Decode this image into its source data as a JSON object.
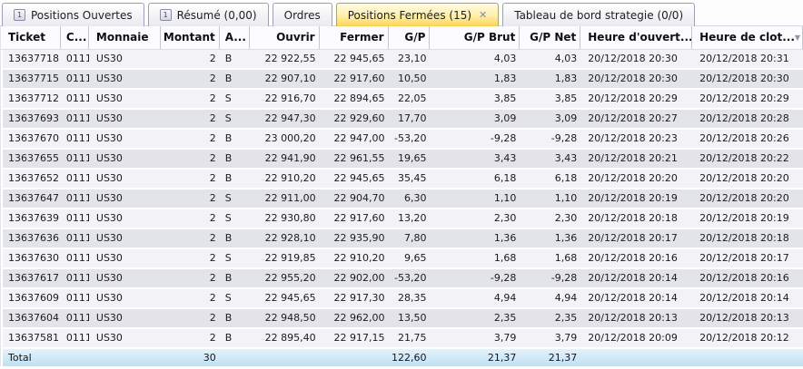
{
  "tabs": [
    {
      "label": "Positions Ouvertes",
      "badge": "1",
      "active": false,
      "closable": false
    },
    {
      "label": "Résumé (0,00)",
      "badge": "1",
      "active": false,
      "closable": false
    },
    {
      "label": "Ordres",
      "active": false,
      "closable": false
    },
    {
      "label": "Positions Fermées (15)",
      "active": true,
      "closable": true
    },
    {
      "label": "Tableau de bord strategie (0/0)",
      "active": false,
      "closable": false
    }
  ],
  "icons": {
    "close_glyph": "✕",
    "header_menu_glyph": "▼"
  },
  "colors": {
    "active_tab_yellow": "#fdd354",
    "row_stripe_light": "#f2f2f7",
    "row_stripe_dark": "#e3e3ea",
    "total_row_blue": "#bfe0f4"
  },
  "table": {
    "columns": [
      {
        "key": "ticket",
        "label": "Ticket"
      },
      {
        "key": "code",
        "label": "C..."
      },
      {
        "key": "monnaie",
        "label": "Monnaie"
      },
      {
        "key": "montant",
        "label": "Montant"
      },
      {
        "key": "achat",
        "label": "A..."
      },
      {
        "key": "ouvrir",
        "label": "Ouvrir"
      },
      {
        "key": "fermer",
        "label": "Fermer"
      },
      {
        "key": "gp",
        "label": "G/P"
      },
      {
        "key": "gp_brut",
        "label": "G/P Brut"
      },
      {
        "key": "gp_net",
        "label": "G/P Net"
      },
      {
        "key": "h_ouv",
        "label": "Heure d'ouvert..."
      },
      {
        "key": "h_clot",
        "label": "Heure de clot..."
      }
    ],
    "rows": [
      {
        "ticket": "13637718",
        "code": "0111",
        "monnaie": "US30",
        "montant": "2",
        "achat": "B",
        "ouvrir": "22 922,55",
        "fermer": "22 945,65",
        "gp": "23,10",
        "gp_brut": "4,03",
        "gp_net": "4,03",
        "h_ouv": "20/12/2018 20:30",
        "h_clot": "20/12/2018 20:31"
      },
      {
        "ticket": "13637715",
        "code": "0111",
        "monnaie": "US30",
        "montant": "2",
        "achat": "B",
        "ouvrir": "22 907,10",
        "fermer": "22 917,60",
        "gp": "10,50",
        "gp_brut": "1,83",
        "gp_net": "1,83",
        "h_ouv": "20/12/2018 20:30",
        "h_clot": "20/12/2018 20:30"
      },
      {
        "ticket": "13637712",
        "code": "0111",
        "monnaie": "US30",
        "montant": "2",
        "achat": "S",
        "ouvrir": "22 916,70",
        "fermer": "22 894,65",
        "gp": "22,05",
        "gp_brut": "3,85",
        "gp_net": "3,85",
        "h_ouv": "20/12/2018 20:29",
        "h_clot": "20/12/2018 20:29"
      },
      {
        "ticket": "13637693",
        "code": "0111",
        "monnaie": "US30",
        "montant": "2",
        "achat": "S",
        "ouvrir": "22 947,30",
        "fermer": "22 929,60",
        "gp": "17,70",
        "gp_brut": "3,09",
        "gp_net": "3,09",
        "h_ouv": "20/12/2018 20:27",
        "h_clot": "20/12/2018 20:28"
      },
      {
        "ticket": "13637670",
        "code": "0111",
        "monnaie": "US30",
        "montant": "2",
        "achat": "B",
        "ouvrir": "23 000,20",
        "fermer": "22 947,00",
        "gp": "-53,20",
        "gp_brut": "-9,28",
        "gp_net": "-9,28",
        "h_ouv": "20/12/2018 20:23",
        "h_clot": "20/12/2018 20:26"
      },
      {
        "ticket": "13637655",
        "code": "0111",
        "monnaie": "US30",
        "montant": "2",
        "achat": "B",
        "ouvrir": "22 941,90",
        "fermer": "22 961,55",
        "gp": "19,65",
        "gp_brut": "3,43",
        "gp_net": "3,43",
        "h_ouv": "20/12/2018 20:21",
        "h_clot": "20/12/2018 20:22"
      },
      {
        "ticket": "13637652",
        "code": "0111",
        "monnaie": "US30",
        "montant": "2",
        "achat": "B",
        "ouvrir": "22 910,20",
        "fermer": "22 945,65",
        "gp": "35,45",
        "gp_brut": "6,18",
        "gp_net": "6,18",
        "h_ouv": "20/12/2018 20:20",
        "h_clot": "20/12/2018 20:20"
      },
      {
        "ticket": "13637647",
        "code": "0111",
        "monnaie": "US30",
        "montant": "2",
        "achat": "S",
        "ouvrir": "22 911,00",
        "fermer": "22 904,70",
        "gp": "6,30",
        "gp_brut": "1,10",
        "gp_net": "1,10",
        "h_ouv": "20/12/2018 20:19",
        "h_clot": "20/12/2018 20:20"
      },
      {
        "ticket": "13637639",
        "code": "0111",
        "monnaie": "US30",
        "montant": "2",
        "achat": "S",
        "ouvrir": "22 930,80",
        "fermer": "22 917,60",
        "gp": "13,20",
        "gp_brut": "2,30",
        "gp_net": "2,30",
        "h_ouv": "20/12/2018 20:18",
        "h_clot": "20/12/2018 20:19"
      },
      {
        "ticket": "13637636",
        "code": "0111",
        "monnaie": "US30",
        "montant": "2",
        "achat": "B",
        "ouvrir": "22 928,10",
        "fermer": "22 935,90",
        "gp": "7,80",
        "gp_brut": "1,36",
        "gp_net": "1,36",
        "h_ouv": "20/12/2018 20:17",
        "h_clot": "20/12/2018 20:18"
      },
      {
        "ticket": "13637630",
        "code": "0111",
        "monnaie": "US30",
        "montant": "2",
        "achat": "S",
        "ouvrir": "22 919,85",
        "fermer": "22 910,20",
        "gp": "9,65",
        "gp_brut": "1,68",
        "gp_net": "1,68",
        "h_ouv": "20/12/2018 20:16",
        "h_clot": "20/12/2018 20:17"
      },
      {
        "ticket": "13637617",
        "code": "0111",
        "monnaie": "US30",
        "montant": "2",
        "achat": "B",
        "ouvrir": "22 955,20",
        "fermer": "22 902,00",
        "gp": "-53,20",
        "gp_brut": "-9,28",
        "gp_net": "-9,28",
        "h_ouv": "20/12/2018 20:14",
        "h_clot": "20/12/2018 20:16"
      },
      {
        "ticket": "13637609",
        "code": "0111",
        "monnaie": "US30",
        "montant": "2",
        "achat": "S",
        "ouvrir": "22 945,65",
        "fermer": "22 917,30",
        "gp": "28,35",
        "gp_brut": "4,94",
        "gp_net": "4,94",
        "h_ouv": "20/12/2018 20:14",
        "h_clot": "20/12/2018 20:14"
      },
      {
        "ticket": "13637604",
        "code": "0111",
        "monnaie": "US30",
        "montant": "2",
        "achat": "B",
        "ouvrir": "22 948,50",
        "fermer": "22 962,00",
        "gp": "13,50",
        "gp_brut": "2,35",
        "gp_net": "2,35",
        "h_ouv": "20/12/2018 20:13",
        "h_clot": "20/12/2018 20:13"
      },
      {
        "ticket": "13637581",
        "code": "0111",
        "monnaie": "US30",
        "montant": "2",
        "achat": "B",
        "ouvrir": "22 895,40",
        "fermer": "22 917,15",
        "gp": "21,75",
        "gp_brut": "3,79",
        "gp_net": "3,79",
        "h_ouv": "20/12/2018 20:09",
        "h_clot": "20/12/2018 20:12"
      }
    ],
    "total": {
      "ticket": "Total",
      "code": "",
      "monnaie": "",
      "montant": "30",
      "achat": "",
      "ouvrir": "",
      "fermer": "",
      "gp": "122,60",
      "gp_brut": "21,37",
      "gp_net": "21,37",
      "h_ouv": "",
      "h_clot": ""
    }
  }
}
